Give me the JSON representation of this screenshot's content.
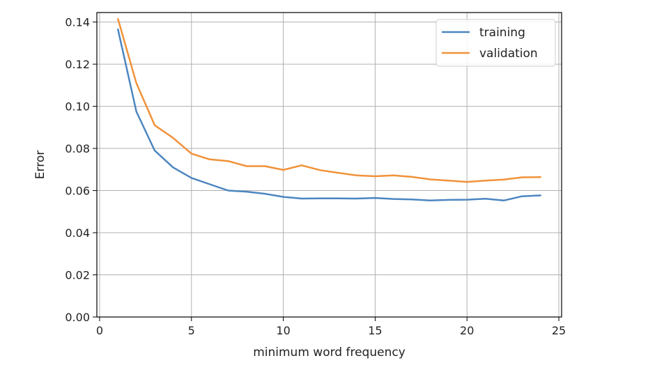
{
  "chart_data": {
    "type": "line",
    "title": "",
    "xlabel": "minimum word frequency",
    "ylabel": "Error",
    "xlim": [
      -0.15,
      25.15
    ],
    "ylim": [
      0,
      0.1445
    ],
    "xticks": [
      0,
      5,
      10,
      15,
      20,
      25
    ],
    "yticks": [
      0.0,
      0.02,
      0.04,
      0.06,
      0.08,
      0.1,
      0.12,
      0.14
    ],
    "ytick_labels": [
      "0.00",
      "0.02",
      "0.04",
      "0.06",
      "0.08",
      "0.10",
      "0.12",
      "0.14"
    ],
    "grid": true,
    "legend_position": "top-right",
    "x": [
      1,
      2,
      3,
      4,
      5,
      6,
      7,
      8,
      9,
      10,
      11,
      12,
      13,
      14,
      15,
      16,
      17,
      18,
      19,
      20,
      21,
      22,
      23,
      24
    ],
    "series": [
      {
        "name": "training",
        "color": "#4c86c0",
        "values": [
          0.1365,
          0.0975,
          0.079,
          0.071,
          0.066,
          0.063,
          0.06,
          0.0595,
          0.0585,
          0.057,
          0.0562,
          0.0563,
          0.0563,
          0.0562,
          0.0565,
          0.056,
          0.0558,
          0.0553,
          0.0556,
          0.0557,
          0.0561,
          0.0553,
          0.0573,
          0.0577
        ]
      },
      {
        "name": "validation",
        "color": "#f0923a",
        "values": [
          0.1415,
          0.111,
          0.091,
          0.085,
          0.0775,
          0.0748,
          0.074,
          0.0716,
          0.0716,
          0.0698,
          0.072,
          0.0697,
          0.0684,
          0.0672,
          0.0668,
          0.0672,
          0.0665,
          0.0653,
          0.0647,
          0.0641,
          0.0647,
          0.0652,
          0.0663,
          0.0664
        ]
      }
    ]
  }
}
